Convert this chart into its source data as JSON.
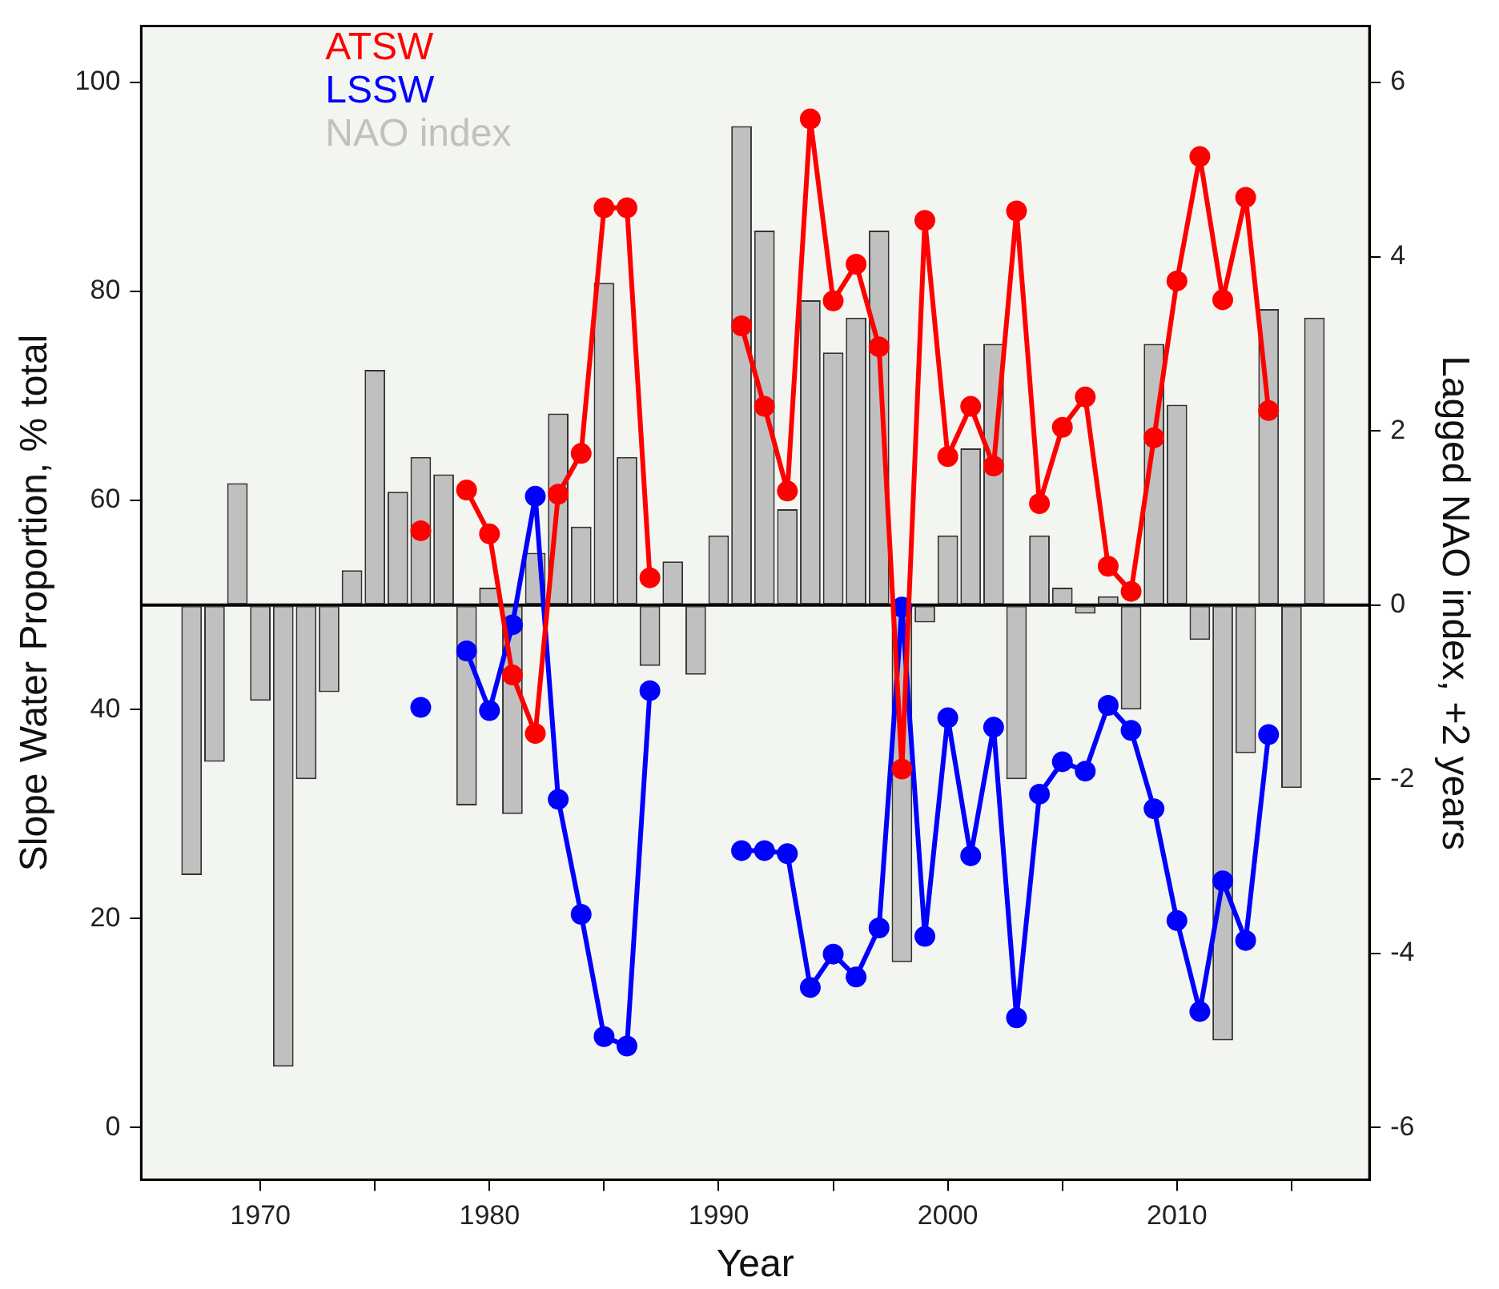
{
  "chart_data": {
    "type": "line",
    "xlabel": "Year",
    "ylabel": "Slope Water Proportion, % total",
    "y2label": "Lagged NAO index, +2 years",
    "x": [
      1967,
      1968,
      1969,
      1970,
      1971,
      1972,
      1973,
      1974,
      1975,
      1976,
      1977,
      1978,
      1979,
      1980,
      1981,
      1982,
      1983,
      1984,
      1985,
      1986,
      1987,
      1988,
      1989,
      1990,
      1991,
      1992,
      1993,
      1994,
      1995,
      1996,
      1997,
      1998,
      1999,
      2000,
      2001,
      2002,
      2003,
      2004,
      2005,
      2006,
      2007,
      2008,
      2009,
      2010,
      2011,
      2012,
      2013,
      2014,
      2015,
      2016
    ],
    "series": [
      {
        "name": "ATSW",
        "color": "#ff0000",
        "values": [
          null,
          null,
          null,
          null,
          null,
          null,
          null,
          null,
          null,
          null,
          57.1,
          null,
          61,
          56.8,
          43.3,
          37.7,
          60.6,
          64.5,
          88,
          88,
          52.6,
          null,
          null,
          null,
          76.7,
          69,
          60.9,
          96.5,
          79.1,
          82.6,
          74.7,
          34.3,
          86.8,
          64.2,
          69,
          63.3,
          87.7,
          59.7,
          67,
          69.9,
          53.7,
          51.3,
          66,
          81,
          92.9,
          79.2,
          89,
          68.6,
          null,
          null
        ]
      },
      {
        "name": "LSSW",
        "color": "#0000ff",
        "values": [
          null,
          null,
          null,
          null,
          null,
          null,
          null,
          null,
          null,
          null,
          40.2,
          null,
          45.6,
          39.9,
          48.1,
          60.4,
          31.4,
          20.4,
          8.7,
          7.8,
          41.8,
          null,
          null,
          null,
          26.5,
          26.5,
          26.2,
          13.4,
          16.6,
          14.4,
          19.1,
          49.8,
          18.3,
          39.2,
          26,
          38.3,
          10.5,
          31.9,
          35,
          34.1,
          40.4,
          38,
          30.5,
          19.8,
          11.1,
          23.6,
          17.9,
          37.6,
          null,
          null
        ]
      },
      {
        "name": "NAO index",
        "type": "bar",
        "axis": "y2",
        "color": "#c0c0c0",
        "values": [
          -3.1,
          -1.8,
          1.4,
          -1.1,
          -5.3,
          -2,
          -1,
          0.4,
          2.7,
          1.3,
          1.7,
          1.5,
          -2.3,
          0.2,
          -2.4,
          0.6,
          2.2,
          0.9,
          3.7,
          1.7,
          -0.7,
          0.5,
          -0.8,
          0.8,
          5.5,
          4.3,
          1.1,
          3.5,
          2.9,
          3.3,
          4.3,
          -4.1,
          -0.2,
          0.8,
          1.8,
          3,
          -2,
          0.8,
          0.2,
          -0.1,
          0.1,
          -1.2,
          3,
          2.3,
          -0.4,
          -5,
          -1.7,
          3.4,
          -2.1,
          3.3
        ]
      }
    ],
    "xlim": [
      1964.8,
      2018.4
    ],
    "xticks": [
      1970,
      {
        "value": 1975,
        "label": null
      },
      1980,
      {
        "value": 1985,
        "label": null
      },
      1990,
      {
        "value": 1995,
        "label": null
      },
      2000,
      {
        "value": 2005,
        "label": null
      },
      2010,
      {
        "value": 2015,
        "label": null
      }
    ],
    "ylim": [
      -5,
      105.4
    ],
    "yticks": [
      0,
      20,
      40,
      60,
      80,
      100
    ],
    "y2lim": [
      -6.6,
      6.65
    ],
    "y2ticks": [
      -6,
      -4,
      -2,
      0,
      2,
      4,
      6
    ],
    "ref_lines": [
      {
        "axis": "y2",
        "value": 0,
        "color": "#000000"
      }
    ],
    "grid": false,
    "legend": "top left",
    "marker": "circle",
    "line_style": "solid"
  }
}
